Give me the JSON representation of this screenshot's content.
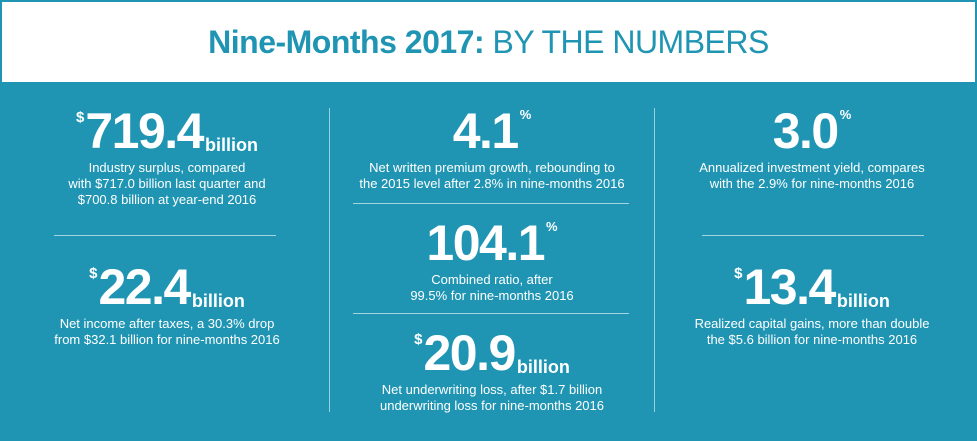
{
  "header": {
    "title_bold": "Nine-Months 2017:",
    "title_light": "BY THE NUMBERS"
  },
  "stats": {
    "surplus": {
      "currency": "$",
      "value": "719.4",
      "unit": "billion",
      "desc_lines": [
        "Industry surplus, compared",
        "with $717.0 billion last quarter and",
        "$700.8 billion at year-end 2016"
      ]
    },
    "net_income": {
      "currency": "$",
      "value": "22.4",
      "unit": "billion",
      "desc_lines": [
        "Net income after taxes, a 30.3% drop",
        "from $32.1 billion for nine-months 2016"
      ]
    },
    "premium_growth": {
      "value": "4.1",
      "percent": "%",
      "desc_lines": [
        "Net written premium growth, rebounding to",
        "the 2015 level after 2.8% in nine-months 2016"
      ]
    },
    "combined_ratio": {
      "value": "104.1",
      "percent": "%",
      "desc_lines": [
        "Combined ratio, after",
        "99.5% for nine-months 2016"
      ]
    },
    "underwriting_loss": {
      "currency": "$",
      "value": "20.9",
      "unit": "billion",
      "desc_lines": [
        "Net underwriting loss, after $1.7 billion",
        "underwriting loss for nine-months 2016"
      ]
    },
    "investment_yield": {
      "value": "3.0",
      "percent": "%",
      "desc_lines": [
        "Annualized investment yield, compares",
        "with the 2.9% for nine-months 2016"
      ]
    },
    "capital_gains": {
      "currency": "$",
      "value": "13.4",
      "unit": "billion",
      "desc_lines": [
        "Realized capital gains, more than double",
        "the $5.6 billion for nine-months 2016"
      ]
    }
  },
  "colors": {
    "brand": "#1f95b3",
    "text": "#ffffff"
  }
}
